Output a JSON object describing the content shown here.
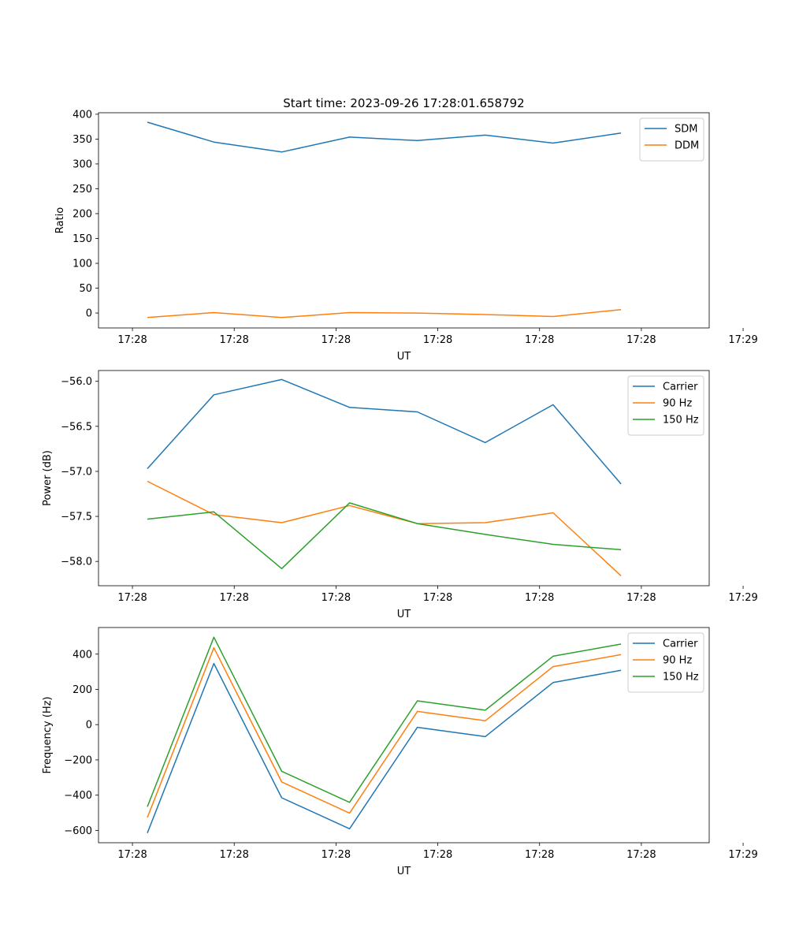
{
  "title": "Start time: 2023-09-26 17:28:01.658792",
  "chart_data": [
    {
      "type": "line",
      "title": "Start time: 2023-09-26 17:28:01.658792",
      "xlabel": "UT",
      "ylabel": "Ratio",
      "xlim": [
        -0.5,
        8.5
      ],
      "xticks": [
        0,
        1.5,
        3,
        4.5,
        6,
        7.5,
        9
      ],
      "xtick_labels": [
        "17:28",
        "17:28",
        "17:28",
        "17:28",
        "17:28",
        "17:28",
        "17:29"
      ],
      "ylim": [
        -30,
        403
      ],
      "yticks": [
        0,
        50,
        100,
        150,
        200,
        250,
        300,
        350,
        400
      ],
      "ytick_labels": [
        "0",
        "50",
        "100",
        "150",
        "200",
        "250",
        "300",
        "350",
        "400"
      ],
      "x": [
        0.22,
        1.2,
        2.2,
        3.2,
        4.2,
        5.2,
        6.2,
        7.2
      ],
      "legend": "top-right",
      "series": [
        {
          "name": "SDM",
          "color": "#1f77b4",
          "values": [
            384,
            344,
            324,
            354,
            347,
            358,
            342,
            362
          ]
        },
        {
          "name": "DDM",
          "color": "#ff7f0e",
          "values": [
            -9,
            1,
            -9,
            1,
            0,
            -3,
            -7,
            7
          ]
        }
      ]
    },
    {
      "type": "line",
      "title": "",
      "xlabel": "UT",
      "ylabel": "Power (dB)",
      "xlim": [
        -0.5,
        8.5
      ],
      "xticks": [
        0,
        1.5,
        3,
        4.5,
        6,
        7.5,
        9
      ],
      "xtick_labels": [
        "17:28",
        "17:28",
        "17:28",
        "17:28",
        "17:28",
        "17:28",
        "17:29"
      ],
      "ylim": [
        -58.27,
        -55.88
      ],
      "yticks": [
        -58.0,
        -57.5,
        -57.0,
        -56.5,
        -56.0
      ],
      "ytick_labels": [
        "−58.0",
        "−57.5",
        "−57.0",
        "−56.5",
        "−56.0"
      ],
      "x": [
        0.22,
        1.2,
        2.2,
        3.2,
        4.2,
        5.2,
        6.2,
        7.2
      ],
      "legend": "top-right",
      "series": [
        {
          "name": "Carrier",
          "color": "#1f77b4",
          "values": [
            -56.97,
            -56.15,
            -55.98,
            -56.29,
            -56.34,
            -56.68,
            -56.26,
            -57.14
          ]
        },
        {
          "name": "90 Hz",
          "color": "#ff7f0e",
          "values": [
            -57.11,
            -57.48,
            -57.57,
            -57.38,
            -57.58,
            -57.57,
            -57.46,
            -58.16
          ]
        },
        {
          "name": "150 Hz",
          "color": "#2ca02c",
          "values": [
            -57.53,
            -57.45,
            -58.08,
            -57.35,
            -57.58,
            -57.7,
            -57.81,
            -57.87
          ]
        }
      ]
    },
    {
      "type": "line",
      "title": "",
      "xlabel": "UT",
      "ylabel": "Frequency (Hz)",
      "xlim": [
        -0.5,
        8.5
      ],
      "xticks": [
        0,
        1.5,
        3,
        4.5,
        6,
        7.5,
        9
      ],
      "xtick_labels": [
        "17:28",
        "17:28",
        "17:28",
        "17:28",
        "17:28",
        "17:28",
        "17:29"
      ],
      "ylim": [
        -670,
        551
      ],
      "yticks": [
        -600,
        -400,
        -200,
        0,
        200,
        400
      ],
      "ytick_labels": [
        "−600",
        "−400",
        "−200",
        "0",
        "200",
        "400"
      ],
      "x": [
        0.22,
        1.2,
        2.2,
        3.2,
        4.2,
        5.2,
        6.2,
        7.2
      ],
      "legend": "top-right",
      "series": [
        {
          "name": "Carrier",
          "color": "#1f77b4",
          "values": [
            -615,
            347,
            -415,
            -591,
            -15,
            -68,
            239,
            308
          ]
        },
        {
          "name": "90 Hz",
          "color": "#ff7f0e",
          "values": [
            -527,
            436,
            -325,
            -502,
            75,
            22,
            329,
            397
          ]
        },
        {
          "name": "150 Hz",
          "color": "#2ca02c",
          "values": [
            -466,
            496,
            -265,
            -441,
            135,
            82,
            388,
            457
          ]
        }
      ]
    }
  ]
}
